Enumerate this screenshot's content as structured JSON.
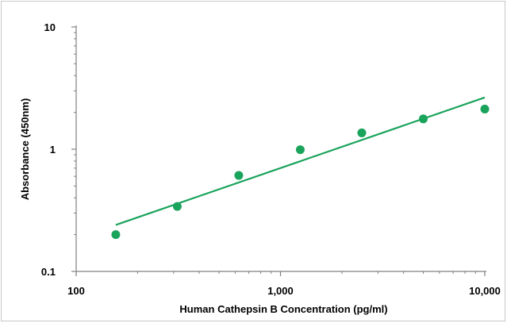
{
  "chart_data": {
    "type": "scatter",
    "title": "",
    "xlabel": "Human Cathepsin B Concentration (pg/ml)",
    "ylabel": "Absorbance (450nm)",
    "x_scale": "log",
    "y_scale": "log",
    "xlim": [
      100,
      10000
    ],
    "ylim": [
      0.1,
      10
    ],
    "x_ticks": [
      {
        "value": 100,
        "label": "100"
      },
      {
        "value": 1000,
        "label": "1,000"
      },
      {
        "value": 10000,
        "label": "10,000"
      }
    ],
    "y_ticks": [
      {
        "value": 0.1,
        "label": "0.1"
      },
      {
        "value": 1,
        "label": "1"
      },
      {
        "value": 10,
        "label": "10"
      }
    ],
    "grid": false,
    "legend": "none",
    "colors": {
      "series": "#1aa35b",
      "axis": "#808080"
    },
    "series": [
      {
        "x": [
          156.25,
          312.5,
          625,
          1250,
          2500,
          5000,
          10000
        ],
        "y": [
          0.2,
          0.34,
          0.61,
          0.99,
          1.36,
          1.77,
          2.13
        ]
      }
    ],
    "trendline": {
      "x": [
        156.25,
        10000
      ],
      "y": [
        0.24,
        2.65
      ]
    }
  }
}
